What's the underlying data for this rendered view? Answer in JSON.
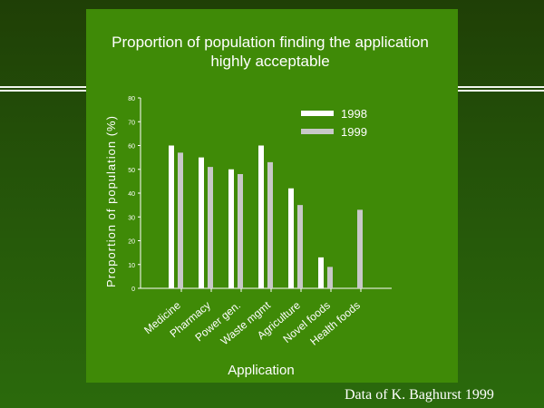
{
  "chart_data": {
    "type": "bar",
    "title": [
      "Proportion of population finding the application",
      "highly acceptable"
    ],
    "xlabel": "Application",
    "ylabel": "Proportion of population (%)",
    "ylim": [
      0,
      80
    ],
    "yticks": [
      "0",
      "10",
      "20",
      "30",
      "40",
      "50",
      "60",
      "70",
      "80"
    ],
    "categories": [
      "Medicine",
      "Pharmacy",
      "Power gen.",
      "Waste mgmt",
      "Agriculture",
      "Novel foods",
      "Health foods"
    ],
    "series": [
      {
        "name": "1998",
        "values": [
          60,
          55,
          50,
          60,
          42,
          13,
          null
        ]
      },
      {
        "name": "1999",
        "values": [
          57,
          51,
          48,
          53,
          35,
          9,
          33
        ]
      }
    ],
    "legend_position": "top-right",
    "grid": false
  },
  "source_note": "Data of K. Baghurst 1999",
  "colors": {
    "series_1998": "#ffffff",
    "series_1999": "#c8c8c8",
    "panel": "#3f8a07",
    "background": "#245209",
    "text": "#ffffff"
  }
}
